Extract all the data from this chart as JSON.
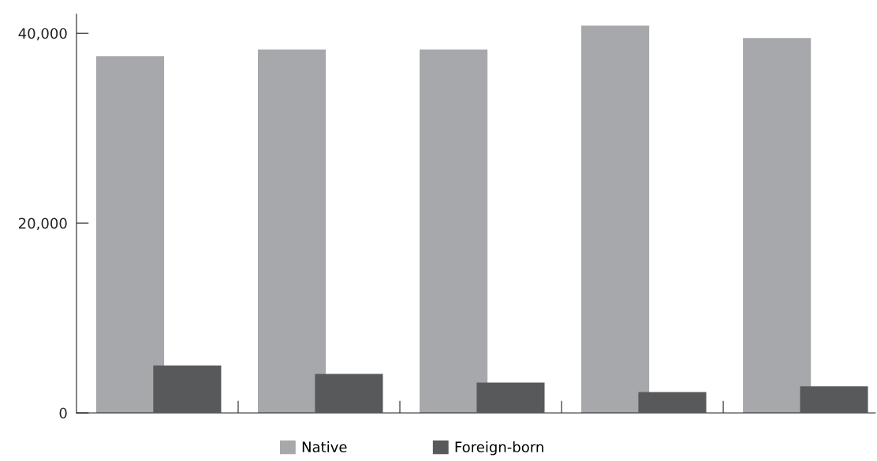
{
  "chart_data": {
    "type": "bar",
    "categories": [
      null,
      null,
      null,
      null,
      null
    ],
    "series": [
      {
        "name": "Native",
        "color": "#a7a8ac",
        "values": [
          37600,
          38300,
          38300,
          40800,
          39500
        ]
      },
      {
        "name": "Foreign-born",
        "color": "#58595b",
        "values": [
          5000,
          4100,
          3200,
          2200,
          2800
        ]
      }
    ],
    "ylim": [
      0,
      42000
    ],
    "yticks": [
      0,
      {
        "value": 20000,
        "label": "20,000"
      },
      {
        "value": 40000,
        "label": "40,000"
      }
    ],
    "grid": false,
    "legend": "bottom"
  }
}
